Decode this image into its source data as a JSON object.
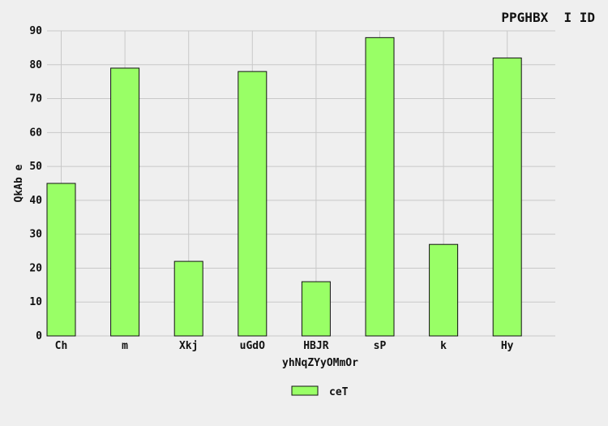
{
  "chart_data": {
    "type": "bar",
    "title": "PPGHBX  I ID",
    "xlabel": "yhNqZYyOMmOr",
    "ylabel": "QkAb e",
    "categories": [
      "Ch",
      "m",
      "Xkj",
      "uGdO",
      "HBJR",
      "sP",
      "k",
      "Hy"
    ],
    "series": [
      {
        "name": "ceT",
        "values": [
          45,
          79,
          22,
          78,
          16,
          88,
          27,
          82
        ]
      }
    ],
    "ylim": [
      0,
      90
    ],
    "yticks": [
      0,
      10,
      20,
      30,
      40,
      50,
      60,
      70,
      80,
      90
    ],
    "grid": true,
    "legend_position": "bottom-center",
    "colors": {
      "bar_fill": "#99ff66",
      "bar_stroke": "#111111",
      "grid": "#c8c8c8",
      "background": "#efefef"
    }
  }
}
